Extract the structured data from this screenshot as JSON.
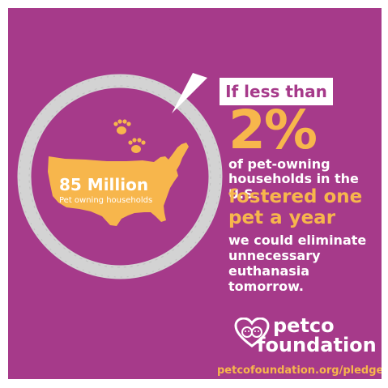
{
  "colors": {
    "background": "#a63a8a",
    "accent": "#f7b64c",
    "ring": "#d3d3d3",
    "text": "#ffffff"
  },
  "map": {
    "headline": "85 Million",
    "subline": "Pet owning households"
  },
  "message": {
    "intro": "If less than",
    "stat": "2%",
    "line1": "of pet-owning",
    "line2": "households in the U.S.",
    "highlight1": "fostered one",
    "highlight2": "pet a year",
    "line3": "we could eliminate",
    "line4": "unnecessary",
    "line5": "euthanasia tomorrow."
  },
  "logo": {
    "line1": "petco",
    "line2": "foundation",
    "icon": "heart-cat-dog-icon"
  },
  "footer": {
    "url": "petcofoundation.org/pledge"
  },
  "icons": [
    "paw-icon",
    "paw-icon",
    "usa-map-icon",
    "speech-pointer"
  ]
}
